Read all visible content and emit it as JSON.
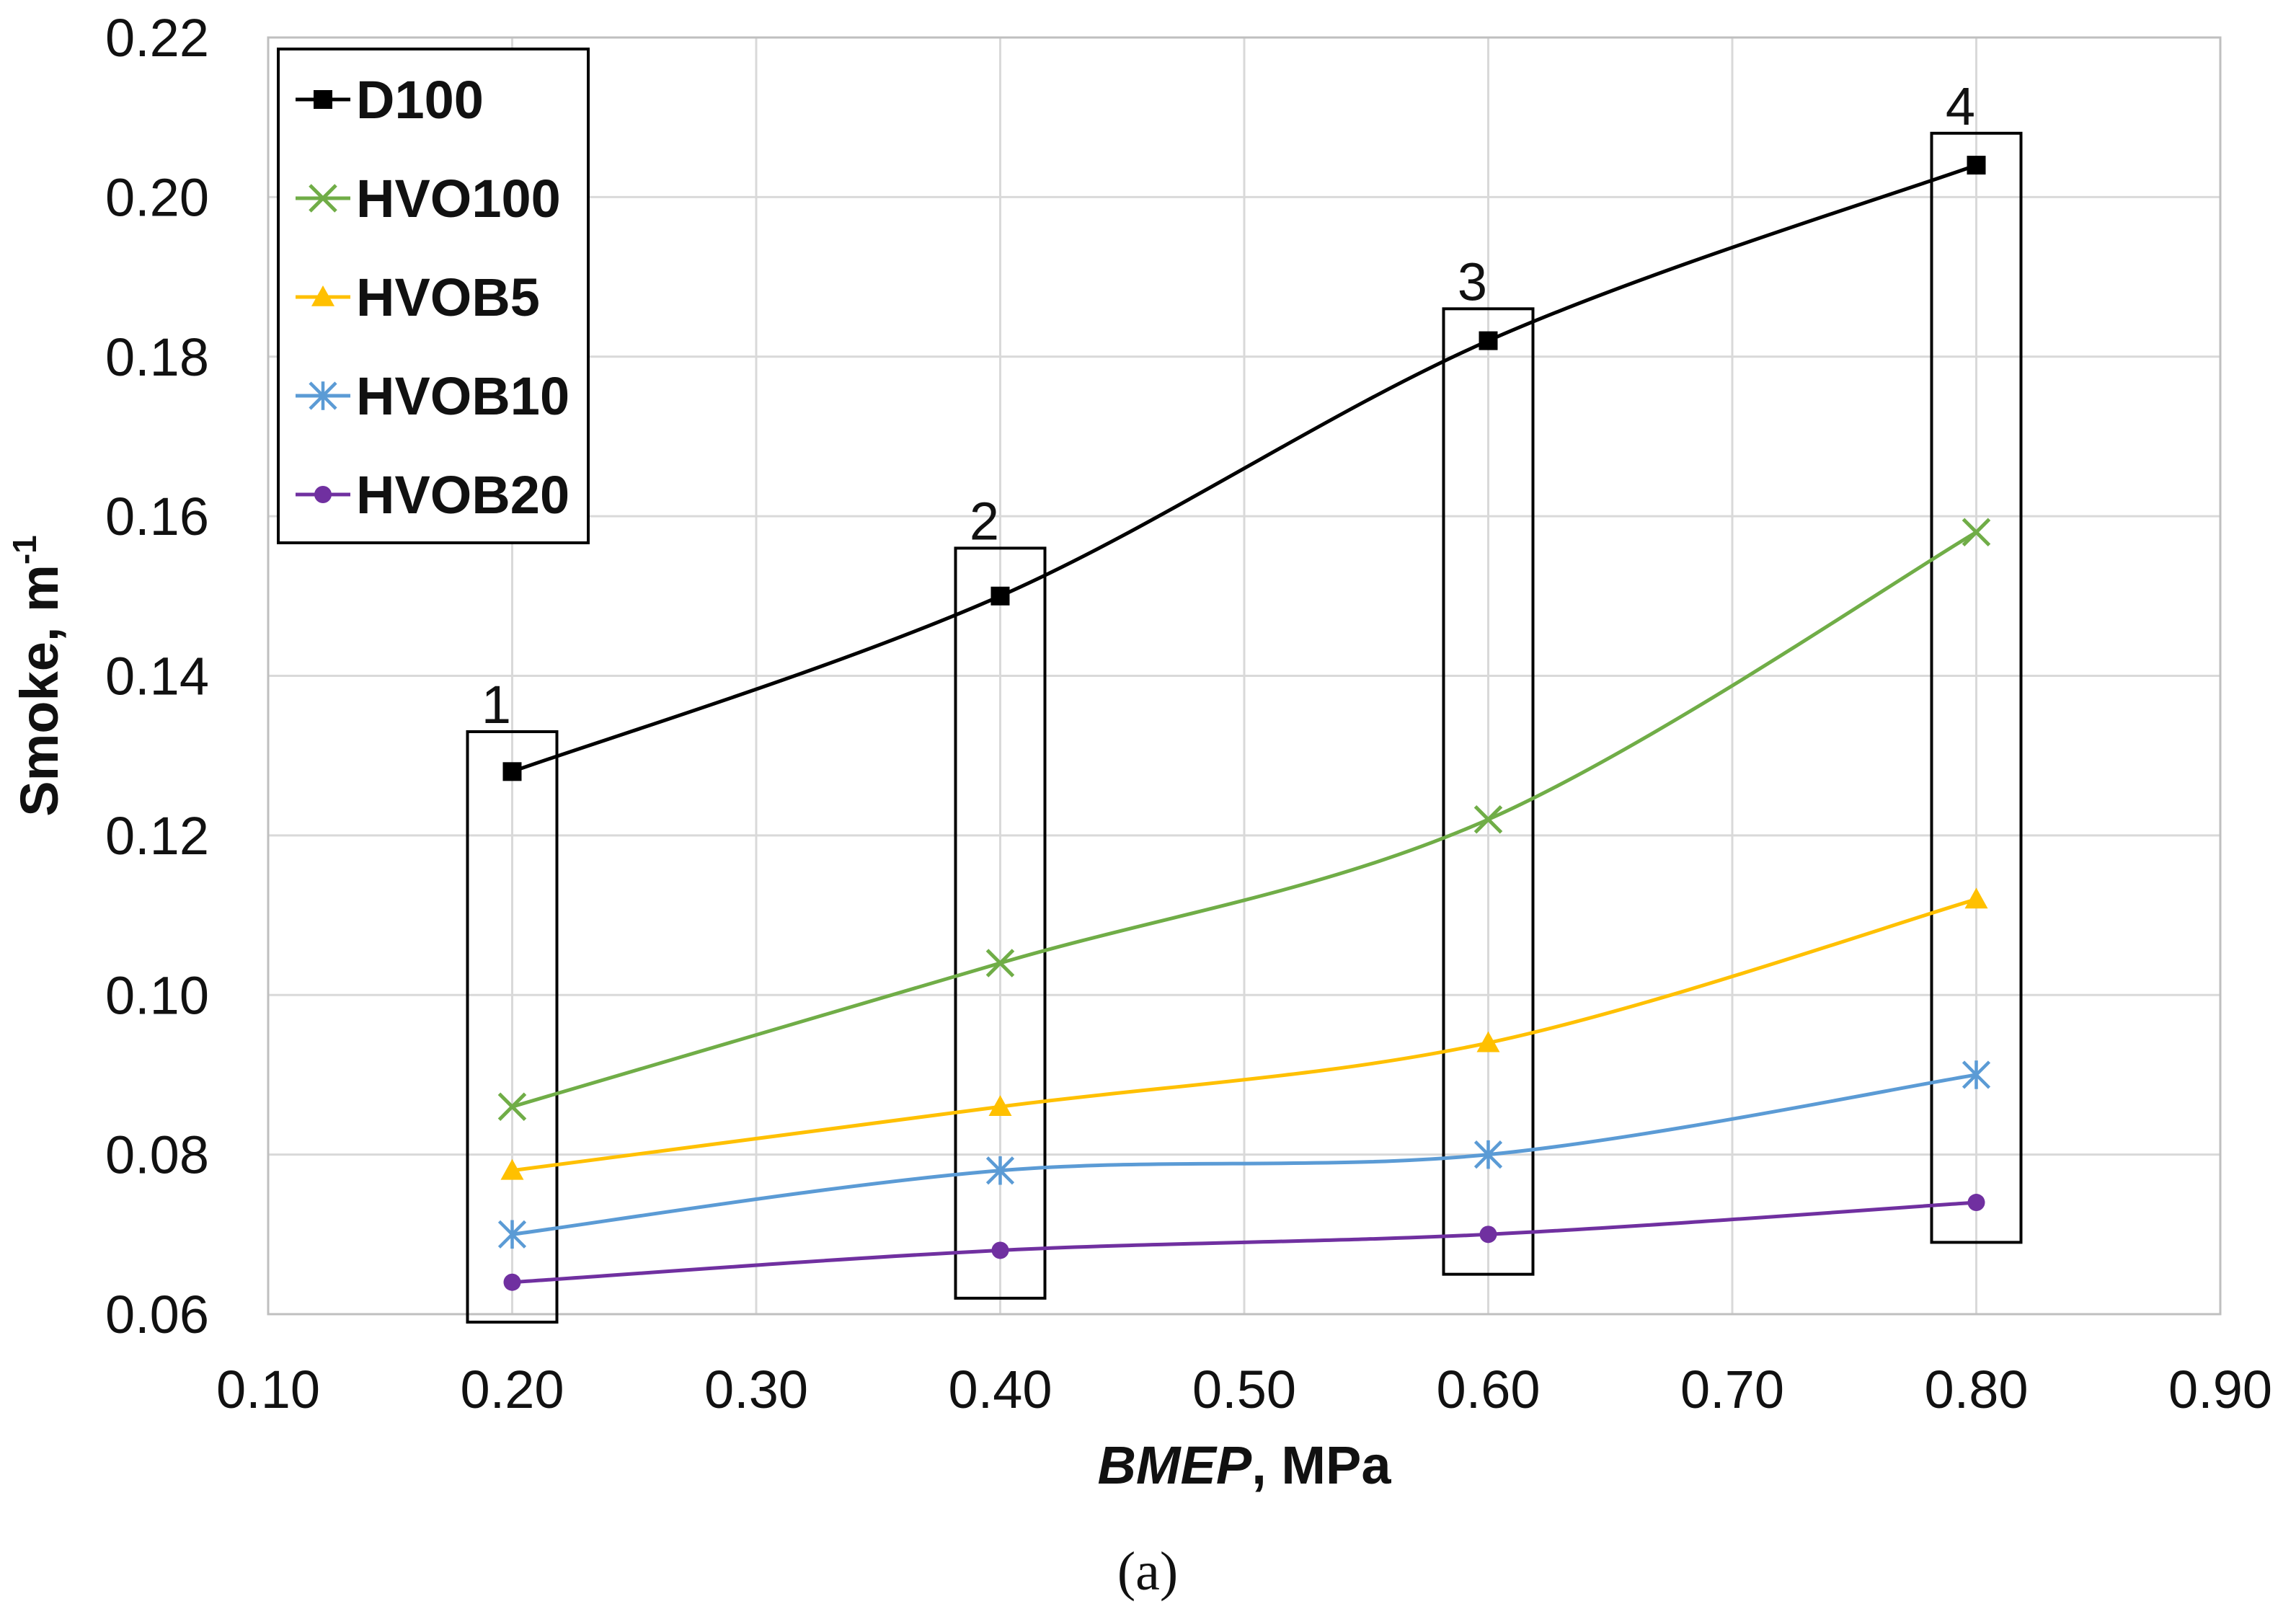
{
  "chart_data": {
    "type": "line",
    "title": "",
    "xlabel_italic": "BMEP",
    "xlabel_rest": ", MPa",
    "ylabel_base": "Smoke, m",
    "ylabel_sup": "-1",
    "xlim": [
      0.1,
      0.9
    ],
    "ylim": [
      0.06,
      0.22
    ],
    "x_ticks": [
      0.1,
      0.2,
      0.3,
      0.4,
      0.5,
      0.6,
      0.7,
      0.8,
      0.9
    ],
    "x_tick_labels": [
      "0.10",
      "0.20",
      "0.30",
      "0.40",
      "0.50",
      "0.60",
      "0.70",
      "0.80",
      "0.90"
    ],
    "y_ticks": [
      0.06,
      0.08,
      0.1,
      0.12,
      0.14,
      0.16,
      0.18,
      0.2,
      0.22
    ],
    "y_tick_labels": [
      "0.06",
      "0.08",
      "0.10",
      "0.12",
      "0.14",
      "0.16",
      "0.18",
      "0.20",
      "0.22"
    ],
    "grid": true,
    "legend_position": "top-left",
    "x": [
      0.2,
      0.4,
      0.6,
      0.8
    ],
    "series": [
      {
        "name": "D100",
        "color": "#000000",
        "marker": "square",
        "values": [
          0.128,
          0.15,
          0.182,
          0.204
        ]
      },
      {
        "name": "HVO100",
        "color": "#70ad47",
        "marker": "x",
        "values": [
          0.086,
          0.104,
          0.122,
          0.158
        ]
      },
      {
        "name": "HVOB5",
        "color": "#ffc000",
        "marker": "triangle",
        "values": [
          0.078,
          0.086,
          0.094,
          0.112
        ]
      },
      {
        "name": "HVOB10",
        "color": "#5b9bd5",
        "marker": "star",
        "values": [
          0.07,
          0.078,
          0.08,
          0.09
        ]
      },
      {
        "name": "HVOB20",
        "color": "#7030a0",
        "marker": "circle",
        "values": [
          0.064,
          0.068,
          0.07,
          0.074
        ]
      }
    ],
    "annotations": [
      {
        "label": "1",
        "x": 0.2,
        "y_range": [
          0.059,
          0.133
        ]
      },
      {
        "label": "2",
        "x": 0.4,
        "y_range": [
          0.062,
          0.156
        ]
      },
      {
        "label": "3",
        "x": 0.6,
        "y_range": [
          0.065,
          0.186
        ]
      },
      {
        "label": "4",
        "x": 0.8,
        "y_range": [
          0.069,
          0.208
        ]
      }
    ],
    "caption": "(a)"
  }
}
